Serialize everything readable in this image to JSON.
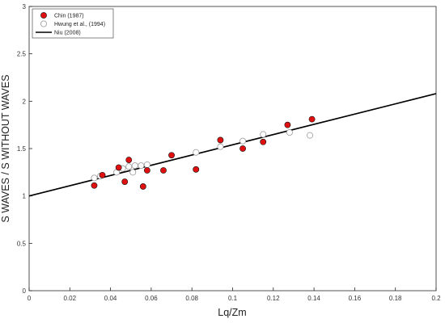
{
  "chart_data": {
    "type": "scatter",
    "xlabel": "Lq/Zm",
    "ylabel": "S WAVES / S WITHOUT WAVES",
    "xlim": [
      0,
      0.2
    ],
    "ylim": [
      0,
      3
    ],
    "x_ticks": [
      "0",
      "0.02",
      "0.04",
      "0.06",
      "0.08",
      "0.1",
      "0.12",
      "0.14",
      "0.16",
      "0.18",
      "0.2"
    ],
    "y_ticks": [
      "0",
      "0.5",
      "1",
      "1.5",
      "2",
      "2.5",
      "3"
    ],
    "grid": false,
    "legend_position": "top-left",
    "series": [
      {
        "name": "Chin (1987)",
        "marker": "filled-circle",
        "color": "#e01010",
        "points": [
          {
            "x": 0.032,
            "y": 1.11
          },
          {
            "x": 0.036,
            "y": 1.22
          },
          {
            "x": 0.044,
            "y": 1.3
          },
          {
            "x": 0.047,
            "y": 1.15
          },
          {
            "x": 0.049,
            "y": 1.38
          },
          {
            "x": 0.056,
            "y": 1.1
          },
          {
            "x": 0.058,
            "y": 1.27
          },
          {
            "x": 0.066,
            "y": 1.27
          },
          {
            "x": 0.07,
            "y": 1.43
          },
          {
            "x": 0.082,
            "y": 1.28
          },
          {
            "x": 0.094,
            "y": 1.59
          },
          {
            "x": 0.105,
            "y": 1.5
          },
          {
            "x": 0.115,
            "y": 1.57
          },
          {
            "x": 0.127,
            "y": 1.75
          },
          {
            "x": 0.139,
            "y": 1.81
          }
        ]
      },
      {
        "name": "Hwung et al., (1994)",
        "marker": "open-circle",
        "color": "#999999",
        "points": [
          {
            "x": 0.032,
            "y": 1.19
          },
          {
            "x": 0.035,
            "y": 1.21
          },
          {
            "x": 0.043,
            "y": 1.25
          },
          {
            "x": 0.046,
            "y": 1.29
          },
          {
            "x": 0.049,
            "y": 1.31
          },
          {
            "x": 0.051,
            "y": 1.25
          },
          {
            "x": 0.052,
            "y": 1.32
          },
          {
            "x": 0.055,
            "y": 1.32
          },
          {
            "x": 0.058,
            "y": 1.33
          },
          {
            "x": 0.082,
            "y": 1.46
          },
          {
            "x": 0.094,
            "y": 1.52
          },
          {
            "x": 0.105,
            "y": 1.58
          },
          {
            "x": 0.115,
            "y": 1.65
          },
          {
            "x": 0.128,
            "y": 1.67
          },
          {
            "x": 0.138,
            "y": 1.64
          }
        ]
      },
      {
        "name": "Niu (2008)",
        "marker": "line",
        "color": "#000000",
        "points": [
          {
            "x": 0,
            "y": 1.0
          },
          {
            "x": 0.2,
            "y": 2.08
          }
        ]
      }
    ]
  }
}
